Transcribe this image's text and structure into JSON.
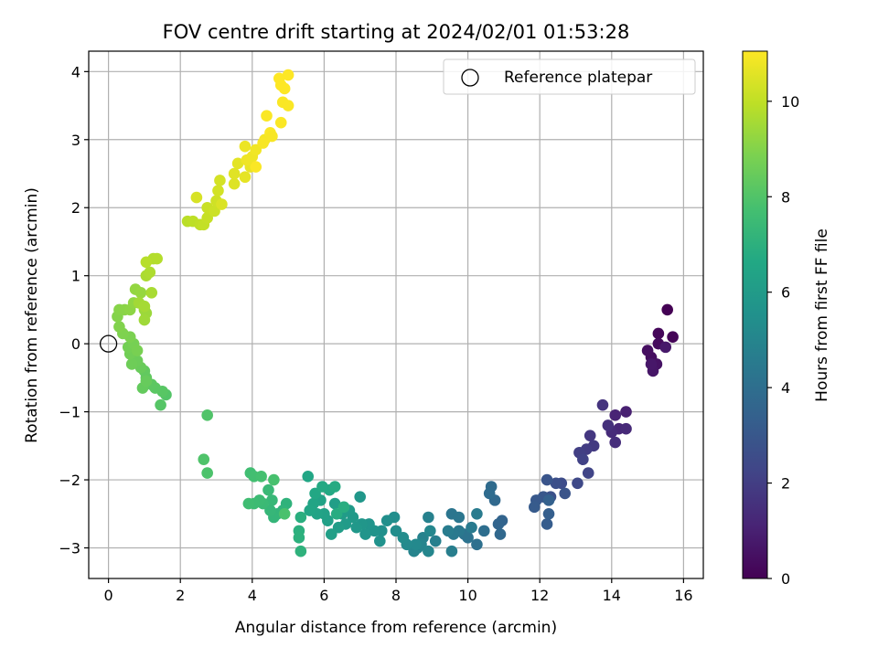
{
  "chart_data": {
    "type": "scatter",
    "title": "FOV centre drift starting at 2024/02/01 01:53:28",
    "xlabel": "Angular distance from reference (arcmin)",
    "ylabel": "Rotation from reference (arcmin)",
    "xlim": [
      -0.55,
      16.55
    ],
    "ylim": [
      -3.45,
      4.3
    ],
    "xticks": [
      0,
      2,
      4,
      6,
      8,
      10,
      12,
      14,
      16
    ],
    "yticks": [
      -3,
      -2,
      -1,
      0,
      1,
      2,
      3,
      4
    ],
    "xtick_labels": [
      "0",
      "2",
      "4",
      "6",
      "8",
      "10",
      "12",
      "14",
      "16"
    ],
    "ytick_labels": [
      "−3",
      "−2",
      "−1",
      "0",
      "1",
      "2",
      "3",
      "4"
    ],
    "grid": true,
    "legend": {
      "position": "top-right",
      "label": "Reference platepar"
    },
    "reference_point": {
      "x": 0,
      "y": 0
    },
    "colorbar": {
      "label": "Hours from first FF file",
      "range": [
        0,
        11.05
      ],
      "ticks": [
        0,
        2,
        4,
        6,
        8,
        10
      ],
      "tick_labels": [
        "0",
        "2",
        "4",
        "6",
        "8",
        "10"
      ],
      "colormap": "viridis"
    },
    "points": [
      [
        15.55,
        0.5,
        0.0
      ],
      [
        15.7,
        0.1,
        0.1
      ],
      [
        15.3,
        0.15,
        0.2
      ],
      [
        15.3,
        0.0,
        0.3
      ],
      [
        15.1,
        -0.2,
        0.4
      ],
      [
        15.0,
        -0.1,
        0.45
      ],
      [
        15.25,
        -0.3,
        0.55
      ],
      [
        15.15,
        -0.4,
        0.65
      ],
      [
        15.1,
        -0.3,
        0.7
      ],
      [
        15.5,
        -0.05,
        0.75
      ],
      [
        14.4,
        -1.0,
        1.0
      ],
      [
        14.1,
        -1.05,
        1.1
      ],
      [
        14.2,
        -1.25,
        1.2
      ],
      [
        14.4,
        -1.25,
        1.3
      ],
      [
        14.0,
        -1.3,
        1.35
      ],
      [
        14.1,
        -1.45,
        1.45
      ],
      [
        13.9,
        -1.2,
        1.55
      ],
      [
        13.75,
        -0.9,
        1.65
      ],
      [
        13.4,
        -1.35,
        1.75
      ],
      [
        13.5,
        -1.5,
        1.85
      ],
      [
        13.3,
        -1.55,
        1.95
      ],
      [
        13.1,
        -1.6,
        2.05
      ],
      [
        13.2,
        -1.7,
        2.15
      ],
      [
        13.35,
        -1.9,
        2.25
      ],
      [
        13.05,
        -2.05,
        2.4
      ],
      [
        12.6,
        -2.05,
        2.55
      ],
      [
        12.45,
        -2.05,
        2.65
      ],
      [
        12.3,
        -2.25,
        2.75
      ],
      [
        12.7,
        -2.2,
        2.85
      ],
      [
        12.2,
        -2.0,
        2.9
      ],
      [
        12.1,
        -2.25,
        3.0
      ],
      [
        11.9,
        -2.3,
        3.05
      ],
      [
        11.85,
        -2.4,
        3.15
      ],
      [
        12.2,
        -2.65,
        3.25
      ],
      [
        12.25,
        -2.5,
        3.3
      ],
      [
        12.25,
        -2.3,
        3.4
      ],
      [
        10.95,
        -2.6,
        3.55
      ],
      [
        10.85,
        -2.65,
        3.6
      ],
      [
        10.9,
        -2.8,
        3.7
      ],
      [
        10.75,
        -2.3,
        3.75
      ],
      [
        10.65,
        -2.1,
        3.85
      ],
      [
        10.6,
        -2.2,
        3.9
      ],
      [
        10.45,
        -2.75,
        4.0
      ],
      [
        10.25,
        -2.95,
        4.05
      ],
      [
        10.0,
        -2.85,
        4.15
      ],
      [
        9.9,
        -2.8,
        4.2
      ],
      [
        9.55,
        -2.5,
        4.3
      ],
      [
        9.75,
        -2.55,
        4.35
      ],
      [
        9.75,
        -2.75,
        4.4
      ],
      [
        9.6,
        -2.8,
        4.45
      ],
      [
        10.1,
        -2.7,
        4.5
      ],
      [
        10.25,
        -2.5,
        4.55
      ],
      [
        9.45,
        -2.75,
        4.6
      ],
      [
        9.55,
        -3.05,
        4.7
      ],
      [
        9.1,
        -2.9,
        4.75
      ],
      [
        8.9,
        -2.55,
        4.8
      ],
      [
        8.75,
        -2.85,
        4.85
      ],
      [
        8.6,
        -3.0,
        4.9
      ],
      [
        8.5,
        -3.05,
        4.95
      ],
      [
        8.7,
        -2.95,
        5.0
      ],
      [
        8.9,
        -3.05,
        5.05
      ],
      [
        8.95,
        -2.75,
        5.1
      ],
      [
        8.55,
        -2.95,
        5.15
      ],
      [
        8.3,
        -2.95,
        5.2
      ],
      [
        8.2,
        -2.85,
        5.3
      ],
      [
        8.0,
        -2.75,
        5.35
      ],
      [
        7.95,
        -2.55,
        5.4
      ],
      [
        7.75,
        -2.6,
        5.45
      ],
      [
        7.6,
        -2.75,
        5.5
      ],
      [
        7.55,
        -2.9,
        5.55
      ],
      [
        7.4,
        -2.75,
        5.6
      ],
      [
        7.25,
        -2.65,
        5.65
      ],
      [
        7.15,
        -2.8,
        5.7
      ],
      [
        7.05,
        -2.65,
        5.75
      ],
      [
        7.0,
        -2.25,
        5.8
      ],
      [
        6.9,
        -2.7,
        5.85
      ],
      [
        6.8,
        -2.55,
        5.9
      ],
      [
        6.7,
        -2.45,
        5.95
      ],
      [
        6.6,
        -2.65,
        6.0
      ],
      [
        6.5,
        -2.5,
        6.05
      ],
      [
        6.4,
        -2.7,
        6.1
      ],
      [
        6.3,
        -2.35,
        6.15
      ],
      [
        6.2,
        -2.8,
        6.2
      ],
      [
        6.1,
        -2.6,
        6.25
      ],
      [
        6.0,
        -2.5,
        6.3
      ],
      [
        5.9,
        -2.3,
        6.35
      ],
      [
        5.8,
        -2.5,
        6.4
      ],
      [
        5.7,
        -2.35,
        6.45
      ],
      [
        5.6,
        -2.45,
        6.5
      ],
      [
        5.55,
        -1.95,
        6.55
      ],
      [
        5.75,
        -2.2,
        6.6
      ],
      [
        6.15,
        -2.15,
        6.65
      ],
      [
        5.95,
        -2.1,
        6.7
      ],
      [
        6.3,
        -2.1,
        6.75
      ],
      [
        6.35,
        -2.5,
        6.8
      ],
      [
        6.55,
        -2.4,
        6.85
      ],
      [
        5.35,
        -2.55,
        6.9
      ],
      [
        5.3,
        -2.75,
        6.95
      ],
      [
        5.3,
        -2.85,
        7.0
      ],
      [
        5.35,
        -3.05,
        7.05
      ],
      [
        4.95,
        -2.35,
        7.1
      ],
      [
        4.85,
        -2.45,
        7.15
      ],
      [
        4.7,
        -2.5,
        7.2
      ],
      [
        4.6,
        -2.55,
        7.25
      ],
      [
        4.5,
        -2.45,
        7.3
      ],
      [
        4.55,
        -2.3,
        7.35
      ],
      [
        4.45,
        -2.15,
        7.4
      ],
      [
        4.3,
        -2.35,
        7.45
      ],
      [
        4.2,
        -2.3,
        7.5
      ],
      [
        4.05,
        -2.35,
        7.55
      ],
      [
        3.9,
        -2.35,
        7.6
      ],
      [
        3.95,
        -1.9,
        7.65
      ],
      [
        4.05,
        -1.95,
        7.7
      ],
      [
        4.25,
        -1.95,
        7.75
      ],
      [
        4.6,
        -2.0,
        7.8
      ],
      [
        4.9,
        -2.5,
        7.85
      ],
      [
        2.75,
        -1.9,
        7.9
      ],
      [
        2.65,
        -1.7,
        7.95
      ],
      [
        2.75,
        -1.05,
        8.0
      ],
      [
        1.6,
        -0.75,
        8.05
      ],
      [
        1.45,
        -0.9,
        8.1
      ],
      [
        1.5,
        -0.7,
        8.15
      ],
      [
        1.3,
        -0.65,
        8.2
      ],
      [
        1.2,
        -0.6,
        8.25
      ],
      [
        1.05,
        -0.5,
        8.3
      ],
      [
        1.0,
        -0.4,
        8.35
      ],
      [
        0.95,
        -0.65,
        8.4
      ],
      [
        1.05,
        -0.55,
        8.45
      ],
      [
        0.9,
        -0.35,
        8.5
      ],
      [
        0.8,
        -0.25,
        8.55
      ],
      [
        0.65,
        -0.3,
        8.6
      ],
      [
        0.6,
        -0.15,
        8.65
      ],
      [
        0.55,
        -0.05,
        8.7
      ],
      [
        0.7,
        0.0,
        8.75
      ],
      [
        0.8,
        -0.1,
        8.8
      ],
      [
        0.6,
        0.1,
        8.85
      ],
      [
        0.4,
        0.15,
        8.9
      ],
      [
        0.3,
        0.25,
        8.95
      ],
      [
        0.25,
        0.4,
        9.0
      ],
      [
        0.3,
        0.5,
        9.05
      ],
      [
        0.45,
        0.5,
        9.1
      ],
      [
        0.6,
        0.5,
        9.15
      ],
      [
        0.7,
        0.6,
        9.2
      ],
      [
        0.75,
        0.8,
        9.25
      ],
      [
        0.9,
        0.75,
        9.3
      ],
      [
        1.0,
        0.5,
        9.35
      ],
      [
        1.05,
        0.45,
        9.4
      ],
      [
        1.0,
        0.35,
        9.45
      ],
      [
        0.85,
        0.6,
        9.5
      ],
      [
        1.0,
        0.55,
        9.55
      ],
      [
        1.2,
        0.75,
        9.6
      ],
      [
        1.05,
        1.0,
        9.65
      ],
      [
        1.15,
        1.05,
        9.7
      ],
      [
        1.25,
        1.25,
        9.75
      ],
      [
        1.35,
        1.25,
        9.8
      ],
      [
        1.05,
        1.2,
        9.85
      ],
      [
        2.2,
        1.8,
        9.9
      ],
      [
        2.35,
        1.8,
        9.95
      ],
      [
        2.55,
        1.75,
        10.0
      ],
      [
        2.65,
        1.75,
        10.05
      ],
      [
        2.75,
        1.85,
        10.1
      ],
      [
        2.75,
        2.0,
        10.15
      ],
      [
        2.95,
        1.95,
        10.2
      ],
      [
        3.0,
        2.1,
        10.25
      ],
      [
        3.05,
        2.25,
        10.3
      ],
      [
        3.1,
        2.4,
        10.35
      ],
      [
        2.45,
        2.15,
        10.4
      ],
      [
        3.15,
        2.05,
        10.45
      ],
      [
        3.5,
        2.35,
        10.5
      ],
      [
        3.5,
        2.5,
        10.55
      ],
      [
        3.6,
        2.65,
        10.6
      ],
      [
        3.8,
        2.45,
        10.65
      ],
      [
        3.95,
        2.6,
        10.7
      ],
      [
        3.8,
        2.9,
        10.75
      ],
      [
        4.0,
        2.75,
        10.8
      ],
      [
        4.1,
        2.85,
        10.85
      ],
      [
        4.35,
        3.0,
        10.9
      ],
      [
        4.3,
        2.95,
        10.95
      ],
      [
        4.4,
        3.35,
        11.0
      ],
      [
        4.5,
        3.1,
        11.0
      ],
      [
        4.8,
        3.25,
        11.0
      ],
      [
        4.85,
        3.55,
        11.0
      ],
      [
        5.0,
        3.5,
        11.0
      ],
      [
        4.9,
        3.75,
        11.05
      ],
      [
        4.8,
        3.8,
        11.05
      ],
      [
        5.0,
        3.95,
        11.05
      ],
      [
        4.75,
        3.9,
        11.05
      ],
      [
        4.1,
        2.6,
        11.0
      ],
      [
        3.85,
        2.7,
        10.8
      ],
      [
        4.55,
        3.05,
        10.95
      ]
    ]
  }
}
